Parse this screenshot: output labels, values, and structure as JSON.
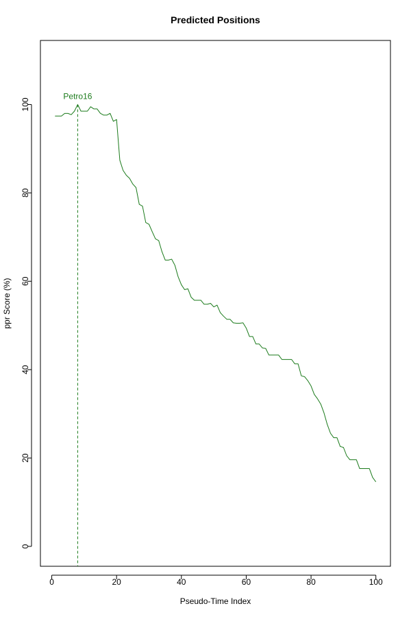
{
  "colors": {
    "series": "#1a7a1a",
    "axis": "#000000",
    "background": "#ffffff"
  },
  "chart_data": {
    "type": "line",
    "title": "Predicted Positions",
    "xlabel": "Pseudo-Time Index",
    "ylabel": "ppr Score (%)",
    "xlim": [
      -3.5,
      104.5
    ],
    "ylim": [
      -4.5,
      114.5
    ],
    "xticks": [
      0,
      20,
      40,
      60,
      80,
      100
    ],
    "yticks": [
      0,
      20,
      40,
      60,
      80,
      100
    ],
    "grid": false,
    "series": [
      {
        "name": "ppr",
        "x": [
          1,
          2,
          3,
          4,
          5,
          6,
          7,
          8,
          9,
          10,
          11,
          12,
          13,
          14,
          15,
          16,
          17,
          18,
          19,
          20,
          21,
          22,
          23,
          24,
          25,
          26,
          27,
          28,
          29,
          30,
          31,
          32,
          33,
          34,
          35,
          36,
          37,
          38,
          39,
          40,
          41,
          42,
          43,
          44,
          45,
          46,
          47,
          48,
          49,
          50,
          51,
          52,
          53,
          54,
          55,
          56,
          57,
          58,
          59,
          60,
          61,
          62,
          63,
          64,
          65,
          66,
          67,
          68,
          69,
          70,
          71,
          72,
          73,
          74,
          75,
          76,
          77,
          78,
          79,
          80,
          81,
          82,
          83,
          84,
          85,
          86,
          87,
          88,
          89,
          90,
          91,
          92,
          93,
          94,
          95,
          96,
          97,
          98,
          99,
          100
        ],
        "values": [
          97.4,
          97.4,
          97.4,
          98.0,
          98.0,
          97.7,
          98.5,
          100.0,
          98.5,
          98.5,
          98.5,
          99.5,
          99.0,
          99.0,
          98.0,
          97.6,
          97.6,
          98.0,
          96.2,
          96.6,
          87.4,
          85.1,
          84.0,
          83.3,
          82.0,
          81.2,
          77.4,
          77.0,
          73.3,
          72.9,
          71.2,
          69.6,
          69.2,
          66.7,
          64.8,
          64.8,
          65.0,
          63.6,
          61.0,
          59.2,
          58.1,
          58.3,
          56.4,
          55.7,
          55.7,
          55.7,
          54.8,
          54.8,
          55.0,
          54.2,
          54.6,
          52.9,
          52.1,
          51.4,
          51.4,
          50.6,
          50.5,
          50.5,
          50.6,
          49.4,
          47.5,
          47.5,
          45.8,
          45.8,
          44.9,
          44.8,
          43.3,
          43.3,
          43.3,
          43.3,
          42.3,
          42.3,
          42.3,
          42.3,
          41.3,
          41.3,
          38.6,
          38.4,
          37.5,
          36.3,
          34.4,
          33.4,
          32.2,
          30.2,
          27.6,
          25.6,
          24.6,
          24.6,
          22.6,
          22.4,
          20.5,
          19.6,
          19.6,
          19.6,
          17.6,
          17.6,
          17.6,
          17.6,
          15.6,
          14.6
        ]
      }
    ],
    "annotations": [
      {
        "label": "Petro16",
        "x": 8,
        "y": 100
      }
    ],
    "vline": {
      "x": 8,
      "style": "dashed"
    }
  }
}
